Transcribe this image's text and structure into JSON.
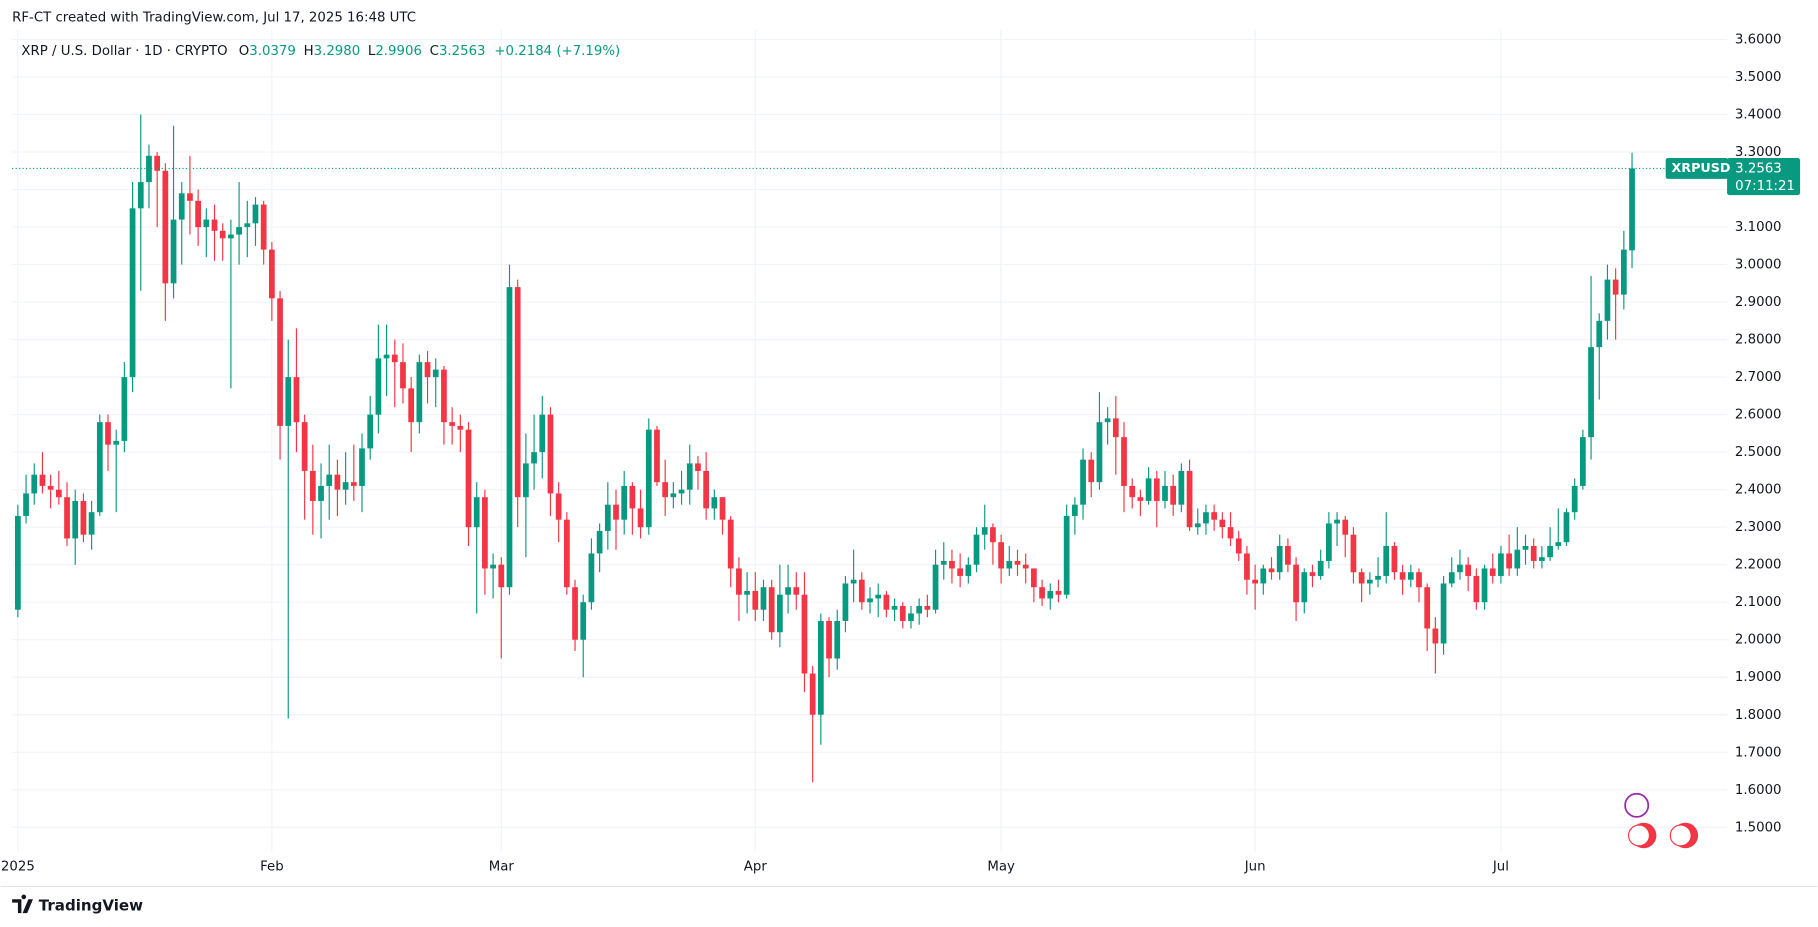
{
  "header": "RF-CT created with TradingView.com, Jul 17, 2025 16:48 UTC",
  "footer": "TradingView",
  "chart_data": {
    "type": "candlestick",
    "symbol": "XRP / U.S. Dollar · 1D · CRYPTO",
    "ohlc_labels": [
      "O",
      "H",
      "L",
      "C"
    ],
    "ohlc_value_labels": [
      "3.0379",
      "3.2980",
      "2.9906",
      "3.2563"
    ],
    "change": "+0.2184 (+7.19%)",
    "ticker": "XRPUSD",
    "countdown": "07:11:21",
    "up_color": "#089981",
    "down_color": "#f23645",
    "open": [
      2.08,
      2.33,
      2.39,
      2.44,
      2.41,
      2.4,
      2.38,
      2.27,
      2.37,
      2.28,
      2.34,
      2.58,
      2.52,
      2.53,
      2.7,
      3.15,
      3.22,
      3.29,
      3.25,
      2.95,
      3.12,
      3.19,
      3.17,
      3.1,
      3.12,
      3.09,
      3.07,
      3.08,
      3.1,
      3.11,
      3.16,
      3.04,
      2.91,
      2.57,
      2.7,
      2.58,
      2.45,
      2.37,
      2.41,
      2.44,
      2.4,
      2.42,
      2.41,
      2.51,
      2.6,
      2.75,
      2.76,
      2.74,
      2.67,
      2.58,
      2.74,
      2.7,
      2.72,
      2.58,
      2.57,
      2.56,
      2.3,
      2.38,
      2.19,
      2.2,
      2.14,
      2.94,
      2.38,
      2.47,
      2.5,
      2.6,
      2.39,
      2.32,
      2.14,
      2.0,
      2.1,
      2.23,
      2.29,
      2.36,
      2.32,
      2.41,
      2.35,
      2.3,
      2.56,
      2.42,
      2.38,
      2.39,
      2.4,
      2.47,
      2.45,
      2.35,
      2.38,
      2.32,
      2.19,
      2.12,
      2.13,
      2.08,
      2.14,
      2.02,
      2.12,
      2.14,
      2.12,
      1.91,
      1.8,
      2.05,
      1.95,
      2.05,
      2.15,
      2.16,
      2.1,
      2.11,
      2.12,
      2.08,
      2.09,
      2.05,
      2.07,
      2.09,
      2.08,
      2.2,
      2.21,
      2.19,
      2.17,
      2.2,
      2.28,
      2.3,
      2.26,
      2.19,
      2.21,
      2.2,
      2.19,
      2.14,
      2.11,
      2.13,
      2.12,
      2.33,
      2.36,
      2.48,
      2.42,
      2.58,
      2.59,
      2.54,
      2.41,
      2.38,
      2.37,
      2.43,
      2.37,
      2.41,
      2.36,
      2.45,
      2.3,
      2.31,
      2.34,
      2.32,
      2.3,
      2.27,
      2.23,
      2.16,
      2.15,
      2.19,
      2.18,
      2.25,
      2.2,
      2.1,
      2.18,
      2.17,
      2.21,
      2.31,
      2.32,
      2.28,
      2.18,
      2.15,
      2.16,
      2.17,
      2.25,
      2.18,
      2.16,
      2.18,
      2.14,
      2.03,
      1.99,
      2.15,
      2.18,
      2.2,
      2.17,
      2.1,
      2.19,
      2.17,
      2.23,
      2.19,
      2.24,
      2.25,
      2.21,
      2.22,
      2.25,
      2.26,
      2.34,
      2.41,
      2.54,
      2.78,
      2.85,
      2.96,
      2.92,
      3.0379
    ],
    "high": [
      2.36,
      2.44,
      2.47,
      2.5,
      2.44,
      2.45,
      2.42,
      2.4,
      2.39,
      2.37,
      2.6,
      2.6,
      2.56,
      2.74,
      3.22,
      3.4,
      3.32,
      3.3,
      3.27,
      3.37,
      3.22,
      3.29,
      3.2,
      3.15,
      3.16,
      3.11,
      3.12,
      3.22,
      3.17,
      3.18,
      3.17,
      3.06,
      2.93,
      2.8,
      2.83,
      2.6,
      2.52,
      2.47,
      2.52,
      2.48,
      2.5,
      2.52,
      2.55,
      2.65,
      2.84,
      2.84,
      2.8,
      2.79,
      2.7,
      2.76,
      2.77,
      2.75,
      2.73,
      2.62,
      2.6,
      2.58,
      2.42,
      2.4,
      2.23,
      2.22,
      3.0,
      2.96,
      2.55,
      2.6,
      2.65,
      2.62,
      2.42,
      2.34,
      2.16,
      2.12,
      2.27,
      2.31,
      2.42,
      2.4,
      2.45,
      2.42,
      2.4,
      2.59,
      2.57,
      2.48,
      2.42,
      2.45,
      2.52,
      2.49,
      2.5,
      2.4,
      2.38,
      2.33,
      2.22,
      2.18,
      2.18,
      2.16,
      2.16,
      2.2,
      2.2,
      2.18,
      2.18,
      1.93,
      2.07,
      2.06,
      2.08,
      2.17,
      2.24,
      2.18,
      2.14,
      2.15,
      2.13,
      2.11,
      2.1,
      2.09,
      2.11,
      2.12,
      2.24,
      2.26,
      2.24,
      2.23,
      2.22,
      2.3,
      2.36,
      2.31,
      2.28,
      2.25,
      2.24,
      2.23,
      2.19,
      2.16,
      2.15,
      2.16,
      2.36,
      2.38,
      2.51,
      2.5,
      2.66,
      2.62,
      2.65,
      2.58,
      2.43,
      2.4,
      2.46,
      2.45,
      2.45,
      2.44,
      2.47,
      2.48,
      2.35,
      2.36,
      2.36,
      2.34,
      2.34,
      2.29,
      2.25,
      2.2,
      2.2,
      2.22,
      2.28,
      2.27,
      2.22,
      2.19,
      2.2,
      2.24,
      2.34,
      2.34,
      2.33,
      2.3,
      2.19,
      2.18,
      2.22,
      2.34,
      2.26,
      2.2,
      2.2,
      2.19,
      2.15,
      2.06,
      2.17,
      2.22,
      2.24,
      2.22,
      2.19,
      2.2,
      2.23,
      2.25,
      2.28,
      2.3,
      2.28,
      2.27,
      2.25,
      2.3,
      2.35,
      2.35,
      2.43,
      2.56,
      2.97,
      2.87,
      3.0,
      2.99,
      3.09,
      3.298
    ],
    "low": [
      2.06,
      2.31,
      2.36,
      2.39,
      2.35,
      2.36,
      2.25,
      2.2,
      2.26,
      2.24,
      2.33,
      2.45,
      2.34,
      2.5,
      2.66,
      2.93,
      3.15,
      3.1,
      2.85,
      2.91,
      3.0,
      3.08,
      3.05,
      3.02,
      3.01,
      3.01,
      2.67,
      3.0,
      3.02,
      3.05,
      3.0,
      2.85,
      2.48,
      1.79,
      2.5,
      2.32,
      2.28,
      2.27,
      2.32,
      2.33,
      2.36,
      2.37,
      2.34,
      2.48,
      2.55,
      2.65,
      2.62,
      2.63,
      2.5,
      2.55,
      2.63,
      2.62,
      2.52,
      2.52,
      2.5,
      2.25,
      2.07,
      2.12,
      2.11,
      1.95,
      2.12,
      2.3,
      2.22,
      2.4,
      2.43,
      2.33,
      2.26,
      2.12,
      1.97,
      1.9,
      2.08,
      2.18,
      2.24,
      2.24,
      2.28,
      2.28,
      2.27,
      2.28,
      2.41,
      2.33,
      2.35,
      2.36,
      2.36,
      2.4,
      2.32,
      2.32,
      2.28,
      2.14,
      2.05,
      2.07,
      2.05,
      2.05,
      2.0,
      1.98,
      2.07,
      2.08,
      1.86,
      1.62,
      1.72,
      1.9,
      1.92,
      2.02,
      2.1,
      2.08,
      2.07,
      2.06,
      2.06,
      2.05,
      2.03,
      2.03,
      2.04,
      2.06,
      2.07,
      2.16,
      2.15,
      2.14,
      2.15,
      2.18,
      2.24,
      2.2,
      2.15,
      2.17,
      2.17,
      2.15,
      2.1,
      2.09,
      2.08,
      2.1,
      2.11,
      2.28,
      2.32,
      2.38,
      2.4,
      2.52,
      2.44,
      2.34,
      2.35,
      2.33,
      2.36,
      2.3,
      2.35,
      2.33,
      2.34,
      2.29,
      2.28,
      2.28,
      2.29,
      2.27,
      2.25,
      2.21,
      2.12,
      2.08,
      2.12,
      2.16,
      2.16,
      2.18,
      2.05,
      2.07,
      2.14,
      2.16,
      2.19,
      2.25,
      2.22,
      2.15,
      2.1,
      2.12,
      2.14,
      2.15,
      2.16,
      2.12,
      2.14,
      2.1,
      1.97,
      1.91,
      1.96,
      2.14,
      2.16,
      2.13,
      2.08,
      2.08,
      2.15,
      2.15,
      2.17,
      2.17,
      2.2,
      2.19,
      2.19,
      2.21,
      2.24,
      2.25,
      2.32,
      2.4,
      2.48,
      2.64,
      2.8,
      2.8,
      2.88,
      2.9906
    ],
    "close": [
      2.33,
      2.39,
      2.44,
      2.41,
      2.4,
      2.38,
      2.27,
      2.37,
      2.28,
      2.34,
      2.58,
      2.52,
      2.53,
      2.7,
      3.15,
      3.22,
      3.29,
      3.25,
      2.95,
      3.12,
      3.19,
      3.17,
      3.1,
      3.12,
      3.09,
      3.07,
      3.08,
      3.1,
      3.11,
      3.16,
      3.04,
      2.91,
      2.57,
      2.7,
      2.58,
      2.45,
      2.37,
      2.41,
      2.44,
      2.4,
      2.42,
      2.41,
      2.51,
      2.6,
      2.75,
      2.76,
      2.74,
      2.67,
      2.58,
      2.74,
      2.7,
      2.72,
      2.58,
      2.57,
      2.56,
      2.3,
      2.38,
      2.19,
      2.2,
      2.14,
      2.94,
      2.38,
      2.47,
      2.5,
      2.6,
      2.39,
      2.32,
      2.14,
      2.0,
      2.1,
      2.23,
      2.29,
      2.36,
      2.32,
      2.41,
      2.35,
      2.3,
      2.56,
      2.42,
      2.38,
      2.39,
      2.4,
      2.47,
      2.45,
      2.35,
      2.38,
      2.32,
      2.19,
      2.12,
      2.13,
      2.08,
      2.14,
      2.02,
      2.12,
      2.14,
      2.12,
      1.91,
      1.8,
      2.05,
      1.95,
      2.05,
      2.15,
      2.16,
      2.1,
      2.11,
      2.12,
      2.08,
      2.09,
      2.05,
      2.07,
      2.09,
      2.08,
      2.2,
      2.21,
      2.19,
      2.17,
      2.2,
      2.28,
      2.3,
      2.26,
      2.19,
      2.21,
      2.2,
      2.19,
      2.14,
      2.11,
      2.13,
      2.12,
      2.33,
      2.36,
      2.48,
      2.42,
      2.58,
      2.59,
      2.54,
      2.41,
      2.38,
      2.37,
      2.43,
      2.37,
      2.41,
      2.36,
      2.45,
      2.3,
      2.31,
      2.34,
      2.32,
      2.3,
      2.27,
      2.23,
      2.16,
      2.15,
      2.19,
      2.18,
      2.25,
      2.2,
      2.1,
      2.18,
      2.17,
      2.21,
      2.31,
      2.32,
      2.28,
      2.18,
      2.15,
      2.16,
      2.17,
      2.25,
      2.18,
      2.16,
      2.18,
      2.14,
      2.03,
      1.99,
      2.15,
      2.18,
      2.2,
      2.17,
      2.1,
      2.19,
      2.17,
      2.23,
      2.19,
      2.24,
      2.25,
      2.21,
      2.22,
      2.25,
      2.26,
      2.34,
      2.41,
      2.54,
      2.78,
      2.85,
      2.96,
      2.92,
      3.04,
      3.2563
    ],
    "xlim": [
      -0.7,
      208.6
    ],
    "xticks": [
      {
        "value": 0,
        "label": "2025"
      },
      {
        "value": 31,
        "label": "Feb"
      },
      {
        "value": 59,
        "label": "Mar"
      },
      {
        "value": 90,
        "label": "Apr"
      },
      {
        "value": 120,
        "label": "May"
      },
      {
        "value": 151,
        "label": "Jun"
      },
      {
        "value": 181,
        "label": "Jul"
      }
    ],
    "ylim": [
      1.435,
      3.625
    ],
    "yticks": [
      {
        "value": 1.5,
        "label": "1.5000"
      },
      {
        "value": 1.6,
        "label": "1.6000"
      },
      {
        "value": 1.7,
        "label": "1.7000"
      },
      {
        "value": 1.8,
        "label": "1.8000"
      },
      {
        "value": 1.9,
        "label": "1.9000"
      },
      {
        "value": 2.0,
        "label": "2.0000"
      },
      {
        "value": 2.1,
        "label": "2.1000"
      },
      {
        "value": 2.2,
        "label": "2.2000"
      },
      {
        "value": 2.3,
        "label": "2.3000"
      },
      {
        "value": 2.4,
        "label": "2.4000"
      },
      {
        "value": 2.5,
        "label": "2.5000"
      },
      {
        "value": 2.6,
        "label": "2.6000"
      },
      {
        "value": 2.7,
        "label": "2.7000"
      },
      {
        "value": 2.8,
        "label": "2.8000"
      },
      {
        "value": 2.9,
        "label": "2.9000"
      },
      {
        "value": 3.0,
        "label": "3.0000"
      },
      {
        "value": 3.1,
        "label": "3.1000"
      },
      {
        "value": 3.2,
        "label": "3.2000"
      },
      {
        "value": 3.3,
        "label": "3.3000"
      },
      {
        "value": 3.4,
        "label": "3.4000"
      },
      {
        "value": 3.5,
        "label": "3.5000"
      },
      {
        "value": 3.6,
        "label": "3.6000"
      }
    ],
    "grid": true
  }
}
